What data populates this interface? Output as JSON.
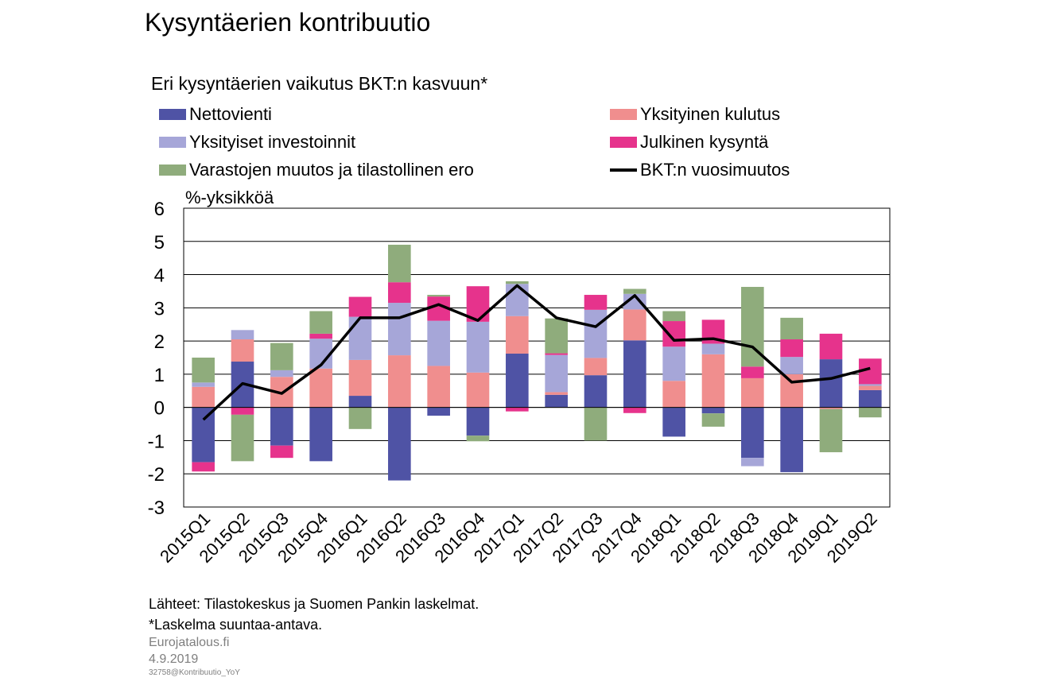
{
  "title": "Kysyntäerien kontribuutio",
  "chart_data": {
    "type": "bar",
    "stacked": true,
    "title": "Eri kysyntäerien vaikutus BKT:n kasvuun*",
    "ylabel": "%-yksikköä",
    "ylim": [
      -3,
      6
    ],
    "yticks": [
      "6",
      "5",
      "4",
      "3",
      "2",
      "1",
      "0",
      "-1",
      "-2",
      "-3"
    ],
    "grid": true,
    "legend_position": "top",
    "categories": [
      "2015Q1",
      "2015Q2",
      "2015Q3",
      "2015Q4",
      "2016Q1",
      "2016Q2",
      "2016Q3",
      "2016Q4",
      "2017Q1",
      "2017Q2",
      "2017Q3",
      "2017Q4",
      "2018Q1",
      "2018Q2",
      "2018Q3",
      "2018Q4",
      "2019Q1",
      "2019Q2"
    ],
    "series": [
      {
        "name": "Nettovienti",
        "color": "#4f53a5",
        "values": [
          -1.65,
          1.38,
          -1.15,
          -1.62,
          0.35,
          -2.2,
          -0.25,
          -0.85,
          1.62,
          0.38,
          0.97,
          2.02,
          -0.88,
          -0.18,
          -1.52,
          -1.95,
          1.45,
          0.52
        ]
      },
      {
        "name": "Yksityinen kulutus",
        "color": "#f08e8e",
        "values": [
          0.62,
          0.67,
          0.92,
          1.17,
          1.08,
          1.57,
          1.25,
          1.05,
          1.13,
          0.08,
          0.52,
          0.93,
          0.8,
          1.6,
          0.88,
          1.0,
          -0.05,
          0.13
        ]
      },
      {
        "name": "Yksityiset investoinnit",
        "color": "#a6a6d8",
        "values": [
          0.13,
          0.28,
          0.2,
          0.9,
          1.3,
          1.58,
          1.36,
          1.53,
          0.97,
          1.12,
          1.45,
          0.47,
          1.03,
          0.32,
          -0.25,
          0.52,
          0.0,
          0.05
        ]
      },
      {
        "name": "Julkinen kysyntä",
        "color": "#e6338c",
        "values": [
          -0.28,
          -0.22,
          -0.37,
          0.15,
          0.6,
          0.62,
          0.73,
          1.07,
          -0.12,
          0.05,
          0.45,
          -0.17,
          0.77,
          0.72,
          0.35,
          0.53,
          0.77,
          0.77
        ]
      },
      {
        "name": "Varastojen muutos ja tilastollinen ero",
        "color": "#8fac7c",
        "values": [
          0.75,
          -1.4,
          0.82,
          0.68,
          -0.65,
          1.13,
          0.05,
          -0.17,
          0.08,
          1.05,
          -1.0,
          0.15,
          0.3,
          -0.4,
          2.4,
          0.65,
          -1.3,
          -0.3
        ]
      }
    ],
    "line": {
      "name": "BKT:n vuosimuutos",
      "color": "#000000",
      "values": [
        -0.37,
        0.72,
        0.42,
        1.28,
        2.7,
        2.7,
        3.1,
        2.62,
        3.67,
        2.7,
        2.43,
        3.37,
        2.02,
        2.07,
        1.82,
        0.76,
        0.87,
        1.18
      ]
    }
  },
  "footer": {
    "sources": "Lähteet: Tilastokeskus ja Suomen Pankin laskelmat.",
    "note": "*Laskelma suuntaa-antava.",
    "brand": "Eurojatalous.fi",
    "date": "4.9.2019",
    "code": "32758@Kontribuutio_YoY"
  }
}
